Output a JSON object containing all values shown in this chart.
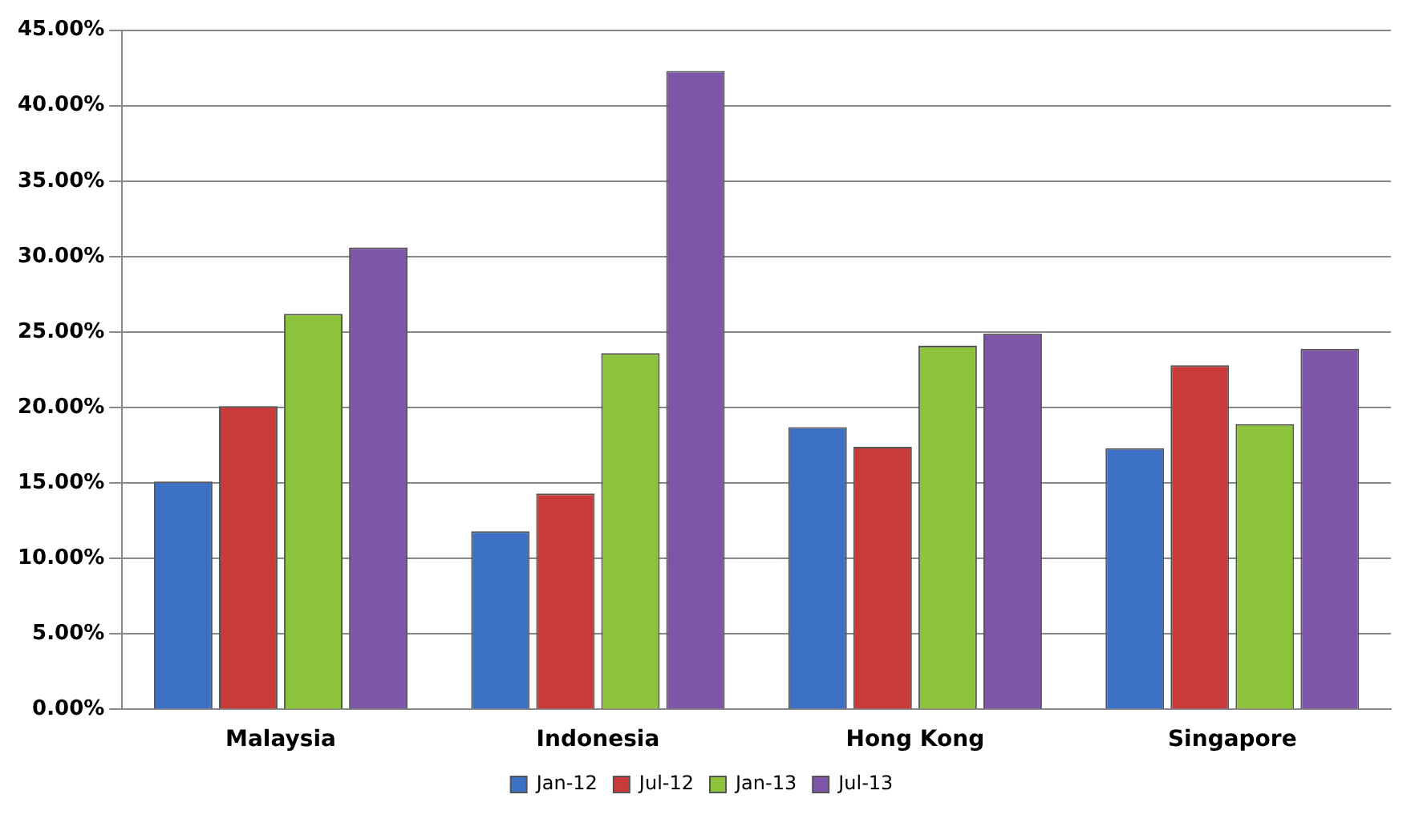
{
  "chart_data": {
    "type": "bar",
    "categories": [
      "Malaysia",
      "Indonesia",
      "Hong Kong",
      "Singapore"
    ],
    "series": [
      {
        "name": "Jan-12",
        "color": "#3b70c4",
        "values": [
          15.1,
          11.8,
          18.7,
          17.3
        ]
      },
      {
        "name": "Jul-12",
        "color": "#c93b3b",
        "values": [
          20.1,
          14.3,
          17.4,
          22.8
        ]
      },
      {
        "name": "Jan-13",
        "color": "#8dc23c",
        "values": [
          26.2,
          23.6,
          24.1,
          18.9
        ]
      },
      {
        "name": "Jul-13",
        "color": "#7d55a9",
        "values": [
          30.6,
          42.3,
          24.9,
          23.9
        ]
      }
    ],
    "ylim": [
      0,
      45
    ],
    "yticks": [
      {
        "value": 0,
        "label": "0.00%"
      },
      {
        "value": 5,
        "label": "5.00%"
      },
      {
        "value": 10,
        "label": "10.00%"
      },
      {
        "value": 15,
        "label": "15.00%"
      },
      {
        "value": 20,
        "label": "20.00%"
      },
      {
        "value": 25,
        "label": "25.00%"
      },
      {
        "value": 30,
        "label": "30.00%"
      },
      {
        "value": 35,
        "label": "35.00%"
      },
      {
        "value": 40,
        "label": "40.00%"
      },
      {
        "value": 45,
        "label": "45.00%"
      }
    ],
    "grid": "y",
    "legend": "bottom"
  }
}
